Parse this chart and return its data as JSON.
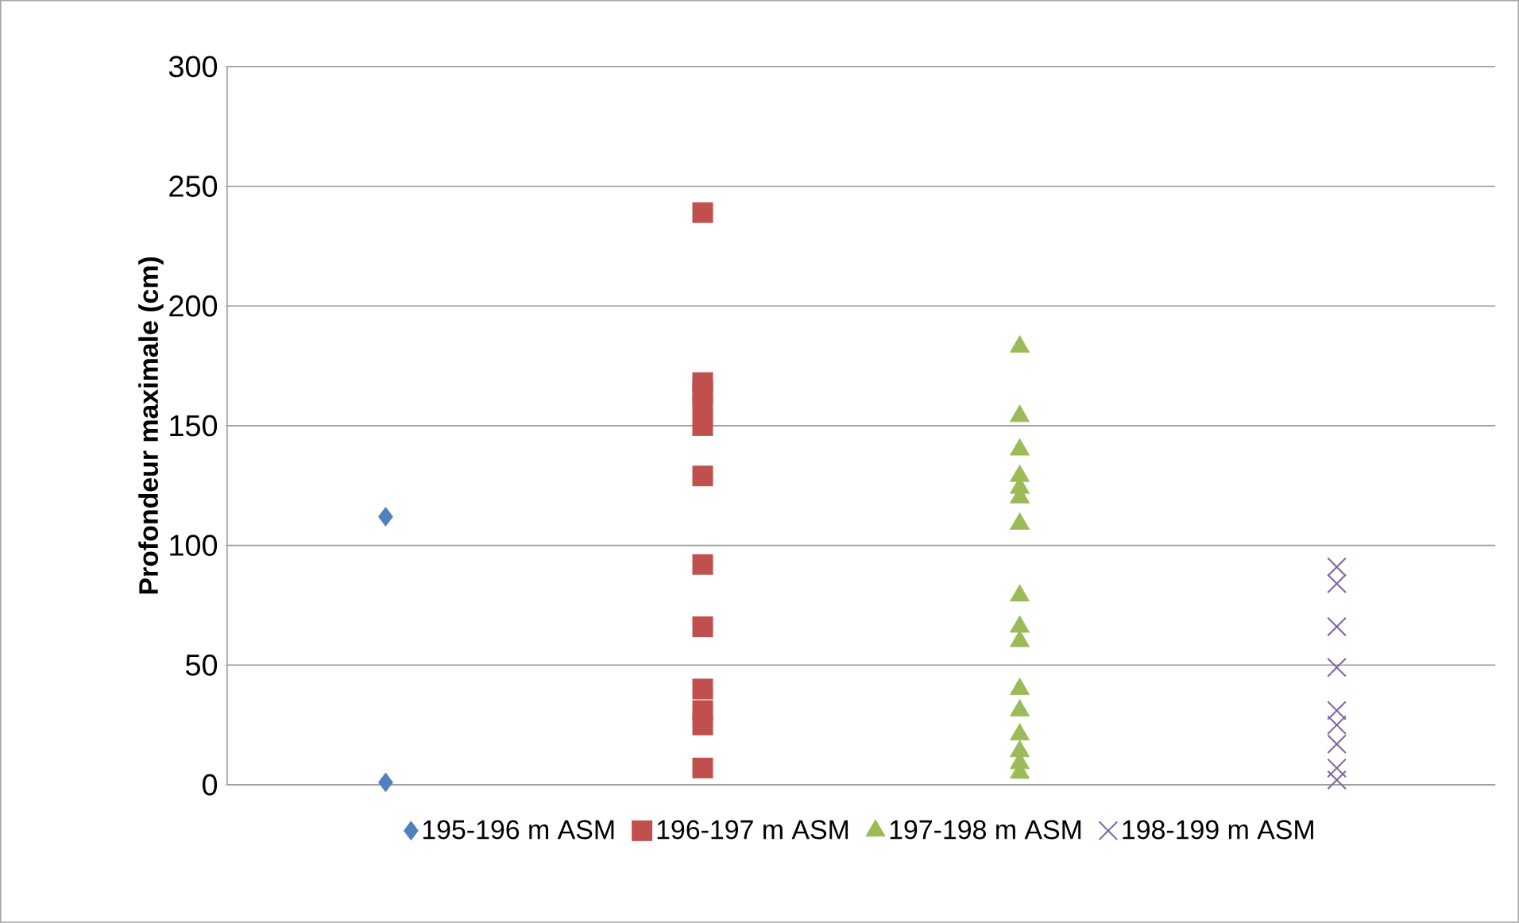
{
  "chart_data": {
    "type": "scatter",
    "ylabel": "Profondeur maximale (cm)",
    "categories": [
      null,
      null,
      null,
      null
    ],
    "ylim": [
      0,
      300
    ],
    "yticks": [
      0,
      50,
      100,
      150,
      200,
      250,
      300
    ],
    "grid": "y",
    "legend": "bottom",
    "series": [
      {
        "name": "195-196 m ASM",
        "color": "#4f81bd",
        "marker": "diamond",
        "values": [
          112,
          null,
          null,
          null
        ]
      },
      {
        "color": "#4f81bd",
        "marker": "diamond",
        "values": [
          1,
          null,
          null,
          null
        ]
      },
      {
        "name": "196-197 m ASM",
        "color": "#c0504d",
        "marker": "square",
        "values": [
          null,
          239,
          null,
          null
        ]
      },
      {
        "color": "#c0504d",
        "marker": "square",
        "values": [
          null,
          168,
          null,
          null
        ]
      },
      {
        "color": "#c0504d",
        "marker": "square",
        "values": [
          null,
          164,
          null,
          null
        ]
      },
      {
        "color": "#c0504d",
        "marker": "square",
        "values": [
          null,
          158,
          null,
          null
        ]
      },
      {
        "color": "#c0504d",
        "marker": "square",
        "values": [
          null,
          150,
          null,
          null
        ]
      },
      {
        "color": "#c0504d",
        "marker": "square",
        "values": [
          null,
          129,
          null,
          null
        ]
      },
      {
        "color": "#c0504d",
        "marker": "square",
        "values": [
          null,
          92,
          null,
          null
        ]
      },
      {
        "color": "#c0504d",
        "marker": "square",
        "values": [
          null,
          66,
          null,
          null
        ]
      },
      {
        "color": "#c0504d",
        "marker": "square",
        "values": [
          null,
          40,
          null,
          null
        ]
      },
      {
        "color": "#c0504d",
        "marker": "square",
        "values": [
          null,
          31,
          null,
          null
        ]
      },
      {
        "color": "#c0504d",
        "marker": "square",
        "values": [
          null,
          25,
          null,
          null
        ]
      },
      {
        "color": "#c0504d",
        "marker": "square",
        "values": [
          null,
          7,
          null,
          null
        ]
      },
      {
        "name": "197-198 m ASM",
        "color": "#9bbb59",
        "marker": "triangle",
        "values": [
          null,
          null,
          183,
          null
        ]
      },
      {
        "color": "#9bbb59",
        "marker": "triangle",
        "values": [
          null,
          null,
          154,
          null
        ]
      },
      {
        "color": "#9bbb59",
        "marker": "triangle",
        "values": [
          null,
          null,
          140,
          null
        ]
      },
      {
        "color": "#9bbb59",
        "marker": "triangle",
        "values": [
          null,
          null,
          129,
          null
        ]
      },
      {
        "color": "#9bbb59",
        "marker": "triangle",
        "values": [
          null,
          null,
          124,
          null
        ]
      },
      {
        "color": "#9bbb59",
        "marker": "triangle",
        "values": [
          null,
          null,
          120,
          null
        ]
      },
      {
        "color": "#9bbb59",
        "marker": "triangle",
        "values": [
          null,
          null,
          109,
          null
        ]
      },
      {
        "color": "#9bbb59",
        "marker": "triangle",
        "values": [
          null,
          null,
          79,
          null
        ]
      },
      {
        "color": "#9bbb59",
        "marker": "triangle",
        "values": [
          null,
          null,
          66,
          null
        ]
      },
      {
        "color": "#9bbb59",
        "marker": "triangle",
        "values": [
          null,
          null,
          60,
          null
        ]
      },
      {
        "color": "#9bbb59",
        "marker": "triangle",
        "values": [
          null,
          null,
          40,
          null
        ]
      },
      {
        "color": "#9bbb59",
        "marker": "triangle",
        "values": [
          null,
          null,
          31,
          null
        ]
      },
      {
        "color": "#9bbb59",
        "marker": "triangle",
        "values": [
          null,
          null,
          21,
          null
        ]
      },
      {
        "color": "#9bbb59",
        "marker": "triangle",
        "values": [
          null,
          null,
          14,
          null
        ]
      },
      {
        "color": "#9bbb59",
        "marker": "triangle",
        "values": [
          null,
          null,
          9,
          null
        ]
      },
      {
        "color": "#9bbb59",
        "marker": "triangle",
        "values": [
          null,
          null,
          5,
          null
        ]
      },
      {
        "name": "198-199 m ASM",
        "color": "#8064a2",
        "marker": "cross",
        "values": [
          null,
          null,
          null,
          91
        ]
      },
      {
        "color": "#8064a2",
        "marker": "cross",
        "values": [
          null,
          null,
          null,
          84
        ]
      },
      {
        "color": "#8064a2",
        "marker": "cross",
        "values": [
          null,
          null,
          null,
          66
        ]
      },
      {
        "color": "#8064a2",
        "marker": "cross",
        "values": [
          null,
          null,
          null,
          49
        ]
      },
      {
        "color": "#8064a2",
        "marker": "cross",
        "values": [
          null,
          null,
          null,
          31
        ]
      },
      {
        "color": "#8064a2",
        "marker": "cross",
        "values": [
          null,
          null,
          null,
          25
        ]
      },
      {
        "color": "#8064a2",
        "marker": "cross",
        "values": [
          null,
          null,
          null,
          17
        ]
      },
      {
        "color": "#8064a2",
        "marker": "cross",
        "values": [
          null,
          null,
          null,
          7
        ]
      },
      {
        "color": "#8064a2",
        "marker": "cross",
        "values": [
          null,
          null,
          null,
          2
        ]
      }
    ]
  }
}
